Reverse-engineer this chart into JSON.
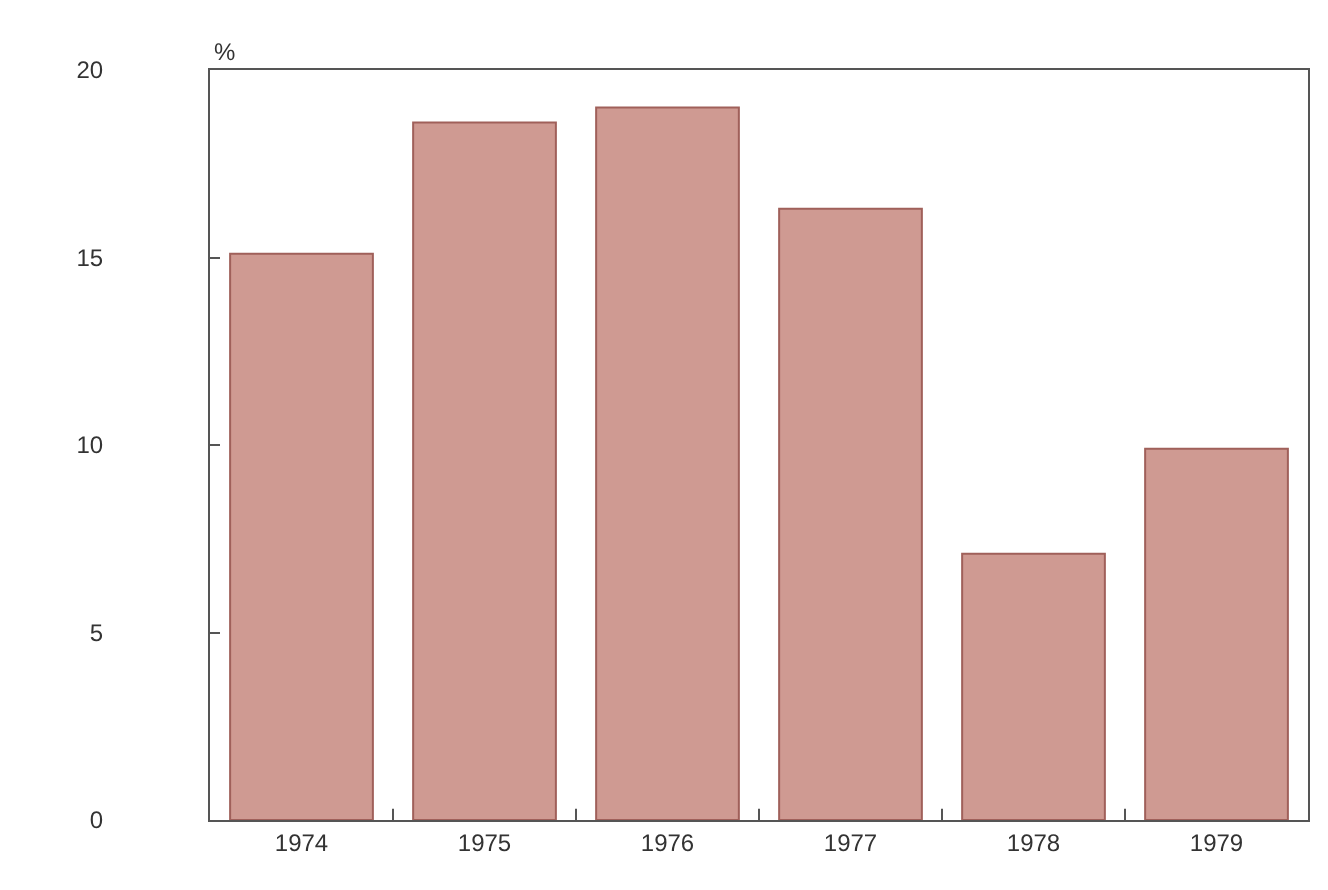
{
  "chart_data": {
    "type": "bar",
    "ylabel": "%",
    "categories": [
      "1974",
      "1975",
      "1976",
      "1977",
      "1978",
      "1979"
    ],
    "values": [
      15.1,
      18.6,
      19.0,
      16.3,
      7.1,
      9.9
    ],
    "color": "#cf9a92",
    "ylim": [
      0,
      20
    ],
    "yticks": [
      0,
      5,
      10,
      15,
      20
    ]
  }
}
